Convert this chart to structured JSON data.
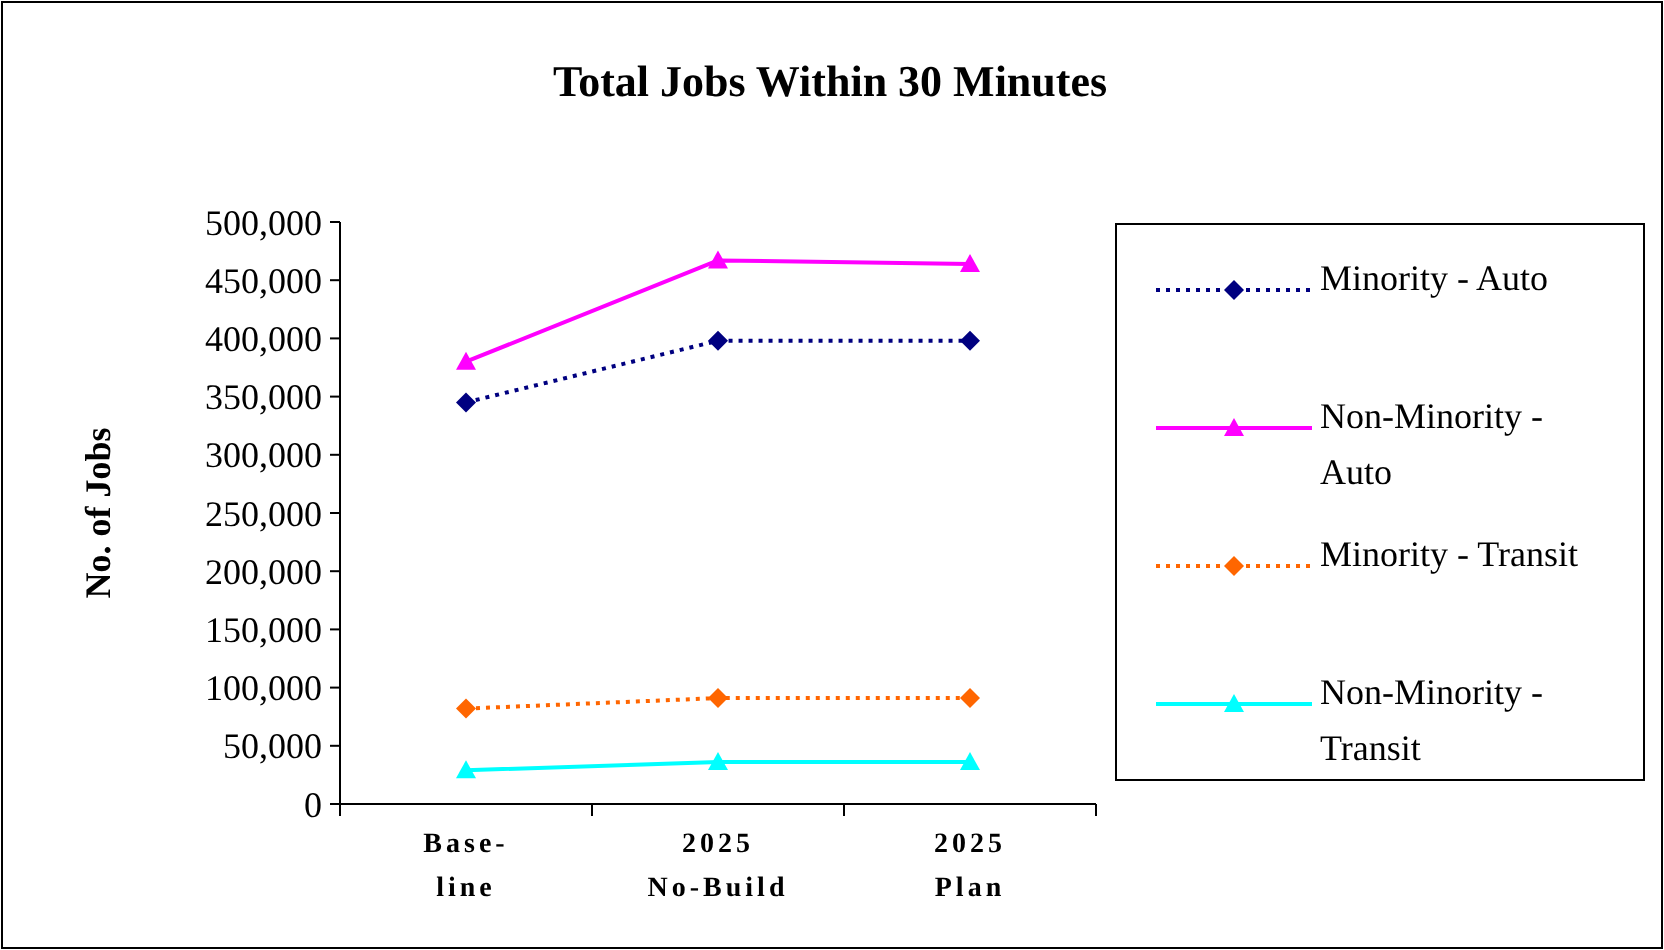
{
  "chart_data": {
    "type": "line",
    "title": "Total Jobs Within 30 Minutes",
    "ylabel": "No. of Jobs",
    "categories": [
      "Base-\nline",
      "2025\nNo-Build",
      "2025\nPlan"
    ],
    "ylim": [
      0,
      500000
    ],
    "yticks": [
      {
        "value": 0,
        "label": "0"
      },
      {
        "value": 50000,
        "label": "50,000"
      },
      {
        "value": 100000,
        "label": "100,000"
      },
      {
        "value": 150000,
        "label": "150,000"
      },
      {
        "value": 200000,
        "label": "200,000"
      },
      {
        "value": 250000,
        "label": "250,000"
      },
      {
        "value": 300000,
        "label": "300,000"
      },
      {
        "value": 350000,
        "label": "350,000"
      },
      {
        "value": 400000,
        "label": "400,000"
      },
      {
        "value": 450000,
        "label": "450,000"
      },
      {
        "value": 500000,
        "label": "500,000"
      }
    ],
    "grid": false,
    "legend": "right",
    "series": [
      {
        "name": "Minority - Auto",
        "color": "#000080",
        "values": [
          345000,
          398000,
          398000
        ],
        "marker": "diamond",
        "line_style": "dotted"
      },
      {
        "name": "Non-Minority - Auto",
        "color": "#ff00ff",
        "values": [
          380000,
          467000,
          464000
        ],
        "marker": "triangle",
        "line_style": "solid"
      },
      {
        "name": "Minority - Transit",
        "color": "#ff6600",
        "values": [
          82000,
          91000,
          91000
        ],
        "marker": "diamond",
        "line_style": "dotted"
      },
      {
        "name": "Non-Minority - Transit",
        "color": "#00ffff",
        "values": [
          29000,
          36000,
          36000
        ],
        "marker": "triangle",
        "line_style": "solid"
      }
    ]
  }
}
